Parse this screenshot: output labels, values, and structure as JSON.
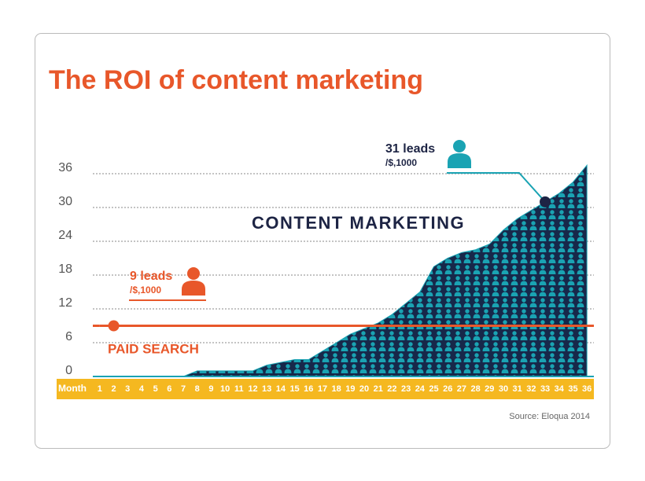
{
  "chart_data": {
    "type": "area",
    "title": "The ROI of content marketing",
    "x_label": "Month",
    "categories": [
      "1",
      "2",
      "3",
      "4",
      "5",
      "6",
      "7",
      "8",
      "9",
      "10",
      "11",
      "12",
      "13",
      "14",
      "15",
      "16",
      "17",
      "18",
      "19",
      "20",
      "21",
      "22",
      "23",
      "24",
      "25",
      "26",
      "27",
      "28",
      "29",
      "30",
      "31",
      "32",
      "33",
      "34",
      "35",
      "36"
    ],
    "series": [
      {
        "name": "CONTENT MARKETING",
        "color": "#1aa3b3",
        "values": [
          0,
          0,
          0,
          0,
          0,
          0,
          0,
          1,
          1,
          1,
          1,
          1,
          2,
          2.5,
          3,
          3,
          4.5,
          6,
          7.5,
          8.5,
          9.5,
          11,
          13,
          15,
          19.5,
          21,
          22,
          22.5,
          23.5,
          26,
          28,
          29.5,
          31,
          32.5,
          34.5,
          37.5
        ]
      },
      {
        "name": "PAID SEARCH",
        "color": "#e8572a",
        "values": [
          9,
          9,
          9,
          9,
          9,
          9,
          9,
          9,
          9,
          9,
          9,
          9,
          9,
          9,
          9,
          9,
          9,
          9,
          9,
          9,
          9,
          9,
          9,
          9,
          9,
          9,
          9,
          9,
          9,
          9,
          9,
          9,
          9,
          9,
          9,
          9
        ]
      }
    ],
    "annotations": [
      {
        "label": "9 leads",
        "sublabel": "/$,1000"
      },
      {
        "label": "31 leads",
        "sublabel": "/$,1000"
      }
    ],
    "ylim": [
      0,
      38
    ],
    "yticks": [
      0,
      6,
      12,
      18,
      24,
      30,
      36
    ],
    "grid": true,
    "source": "Source: Eloqua 2014"
  }
}
